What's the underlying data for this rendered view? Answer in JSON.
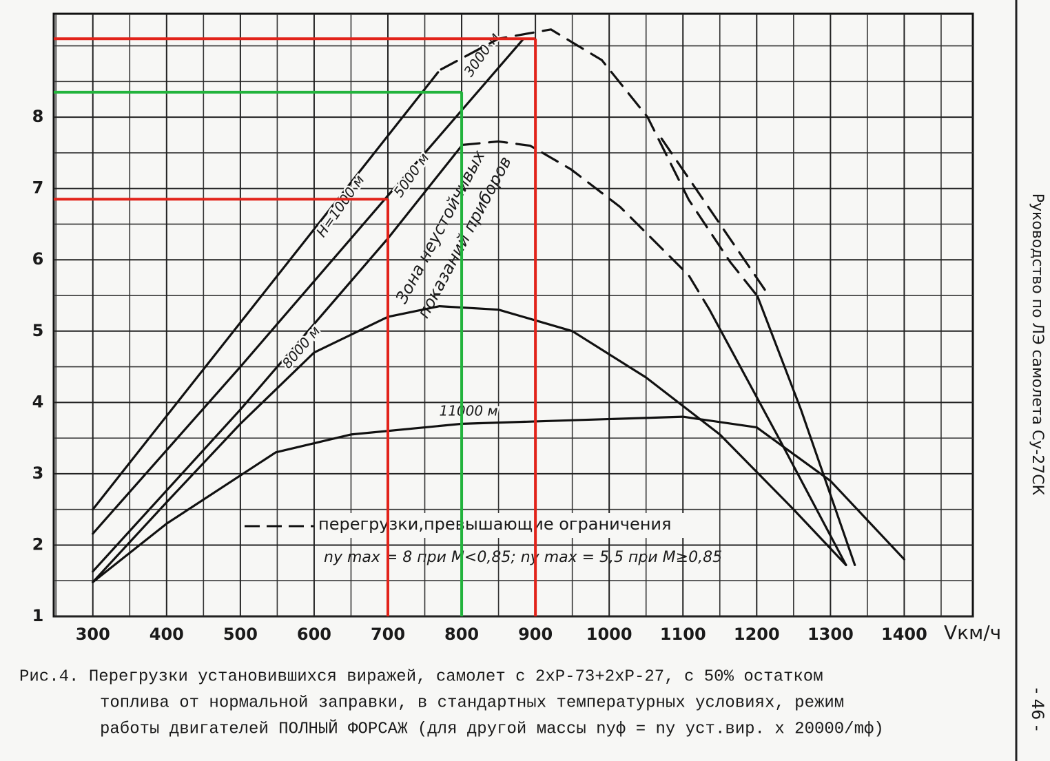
{
  "chart_data": {
    "type": "line",
    "xlabel": "Vкм/ч",
    "xlim": [
      247,
      1493
    ],
    "ylim": [
      1,
      9.45
    ],
    "xticks": [
      300,
      400,
      500,
      600,
      700,
      800,
      900,
      1000,
      1100,
      1200,
      1300,
      1400
    ],
    "yticks": [
      1,
      2,
      3,
      4,
      5,
      6,
      7,
      8
    ],
    "grid_x": [
      250,
      350,
      450,
      550,
      650,
      750,
      850,
      950,
      1050,
      1150,
      1250,
      1350,
      1450
    ],
    "grid_y": [
      1.5,
      2.5,
      3.5,
      4.5,
      5.5,
      6.5,
      7.5,
      8.5,
      9
    ],
    "grid": true,
    "series": [
      {
        "name": "Н=1000 м",
        "color": "#111111",
        "dash": false,
        "x": [
          300,
          500,
          700,
          768,
          null,
          1201,
          1260,
          1333
        ],
        "values": [
          2.5,
          5.12,
          7.74,
          8.63,
          null,
          5.49,
          3.9,
          1.72
        ]
      },
      {
        "name": "3000 м",
        "color": "#111111",
        "dash": false,
        "x": [
          300,
          500,
          700,
          884
        ],
        "values": [
          2.16,
          4.5,
          6.9,
          9.1
        ]
      },
      {
        "name": "5000 м",
        "color": "#111111",
        "dash": false,
        "x": [
          300,
          500,
          700,
          800,
          null,
          1136,
          1230,
          1321
        ],
        "values": [
          1.63,
          3.9,
          6.3,
          7.6,
          null,
          5.3,
          3.5,
          1.72
        ]
      },
      {
        "name": "8000 м",
        "color": "#111111",
        "dash": false,
        "x": [
          300,
          400,
          500,
          600,
          700,
          770,
          850,
          950,
          1050,
          1150,
          1250,
          1321
        ],
        "values": [
          1.48,
          2.6,
          3.7,
          4.7,
          5.2,
          5.35,
          5.3,
          5.0,
          4.35,
          3.55,
          2.5,
          1.72
        ]
      },
      {
        "name": "11000 м",
        "color": "#111111",
        "dash": false,
        "x": [
          300,
          400,
          548,
          650,
          800,
          950,
          1100,
          1200,
          1300,
          1400
        ],
        "values": [
          1.48,
          2.3,
          3.3,
          3.55,
          3.7,
          3.75,
          3.8,
          3.65,
          2.9,
          1.8
        ]
      },
      {
        "name": "перегрузки,превышающие ограничения",
        "color": "#111111",
        "dash": true,
        "x": [
          772,
          850,
          921,
          990,
          1052,
          1108,
          1164,
          1201,
          null,
          800,
          850,
          893,
          948,
          1015,
          1108,
          1136,
          null,
          1071,
          1211
        ],
        "values": [
          8.67,
          9.1,
          9.23,
          8.8,
          8.0,
          6.84,
          5.97,
          5.49,
          null,
          7.61,
          7.66,
          7.6,
          7.27,
          6.74,
          5.78,
          5.3,
          null,
          7.7,
          5.58
        ]
      }
    ],
    "guides": [
      {
        "x": 700,
        "y": 6.85,
        "color": "#e2231a"
      },
      {
        "x": 800,
        "y": 8.35,
        "color": "#22b33c"
      },
      {
        "x": 900,
        "y": 9.1,
        "color": "#e2231a"
      }
    ],
    "annotations": [
      "Зона неустойчивых",
      "показаний приборов",
      "nу max = 8 при M<0,85;  nу max = 5,5 при M≥0,85"
    ],
    "caption": [
      "Рис.4. Перегрузки установившихся виражей, самолет с 2хР-73+2хР-27, с 50% остатком",
      "топлива от нормальной заправки, в стандартных температурных условиях, режим",
      "работы двигателей ПОЛНЫЙ ФОРСАЖ (для другой массы nуф = nу уст.вир. х 20000/mф)"
    ],
    "side_title": "Руководство по ЛЭ самолета Су-27СК",
    "page_number": "- 46 -"
  }
}
